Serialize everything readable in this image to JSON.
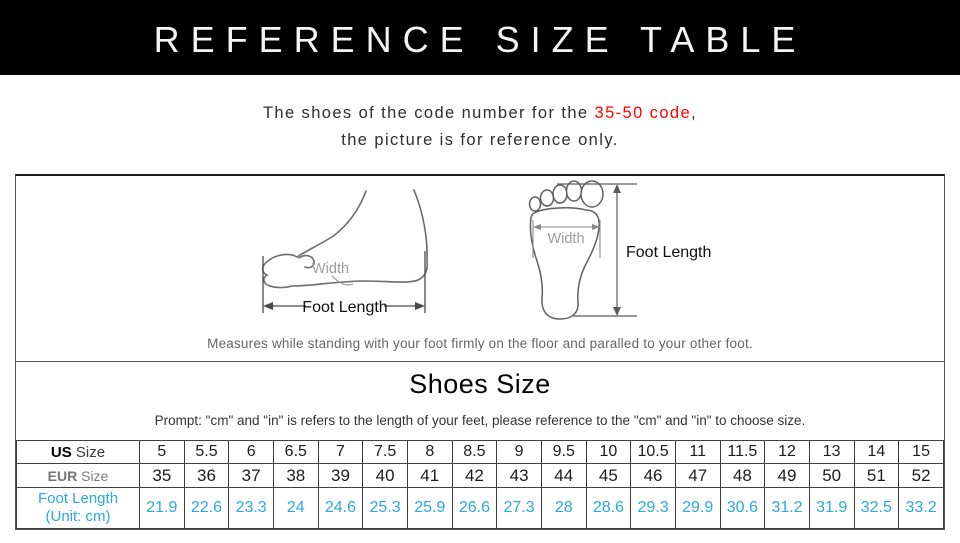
{
  "header": {
    "title": "REFERENCE SIZE TABLE"
  },
  "intro": {
    "line1_prefix": "The shoes of the code number for the ",
    "line1_highlight": "35-50 code",
    "line1_suffix": ",",
    "line2": "the picture is for reference only."
  },
  "diagram": {
    "side_foot_width_label": "Width",
    "side_foot_length_label": "Foot Length",
    "top_foot_width_label": "Width",
    "top_foot_length_label": "Foot Length",
    "caption": "Measures while standing with your foot firmly on the floor and paralled to your other foot."
  },
  "size_section": {
    "title": "Shoes Size",
    "prompt": "Prompt: \"cm\" and \"in\" is refers to the length of your feet, please reference to the \"cm\" and \"in\" to choose size."
  },
  "table": {
    "us_row": {
      "label_strong": "US",
      "label_rest": " Size"
    },
    "eur_row": {
      "label_strong": "EUR",
      "label_rest": " Size"
    },
    "foot_row": {
      "label_line1": "Foot Length",
      "label_line2": "(Unit: cm)"
    }
  },
  "chart_data": {
    "type": "table",
    "title": "Shoes Size",
    "rows": [
      {
        "label": "US Size",
        "values": [
          "5",
          "5.5",
          "6",
          "6.5",
          "7",
          "7.5",
          "8",
          "8.5",
          "9",
          "9.5",
          "10",
          "10.5",
          "11",
          "11.5",
          "12",
          "13",
          "14",
          "15"
        ]
      },
      {
        "label": "EUR Size",
        "values": [
          "35",
          "36",
          "37",
          "38",
          "39",
          "40",
          "41",
          "42",
          "43",
          "44",
          "45",
          "46",
          "47",
          "48",
          "49",
          "50",
          "51",
          "52"
        ]
      },
      {
        "label": "Foot Length (Unit: cm)",
        "values": [
          "21.9",
          "22.6",
          "23.3",
          "24",
          "24.6",
          "25.3",
          "25.9",
          "26.6",
          "27.3",
          "28",
          "28.6",
          "29.3",
          "29.9",
          "30.6",
          "31.2",
          "31.9",
          "32.5",
          "33.2"
        ]
      }
    ]
  },
  "colors": {
    "header_bg": "#000000",
    "accent_red": "#ff0000",
    "accent_blue": "#29a9e1",
    "table_border": "#3f3f3f"
  }
}
